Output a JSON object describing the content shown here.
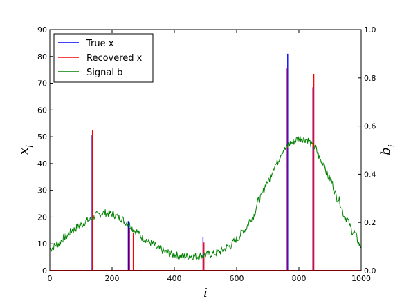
{
  "chart_data": {
    "type": "line",
    "xlabel": "i",
    "ylabel": "x_i",
    "y2label": "b_i",
    "xlim": [
      0,
      1000
    ],
    "ylim": [
      0,
      90
    ],
    "y2lim": [
      0,
      1.0
    ],
    "x_ticks": [
      "0",
      "200",
      "400",
      "600",
      "800",
      "1000"
    ],
    "y_ticks": [
      "0",
      "10",
      "20",
      "30",
      "40",
      "50",
      "60",
      "70",
      "80",
      "90"
    ],
    "y2_ticks": [
      "0.0",
      "0.2",
      "0.4",
      "0.6",
      "0.8",
      "1.0"
    ],
    "grid": false,
    "legend_position": "top-left",
    "series": [
      {
        "name": "True x",
        "axis": "left",
        "style": "spikes",
        "color": "#0000ff",
        "x": [
          133,
          252,
          492,
          764,
          845
        ],
        "values": [
          50.5,
          18.5,
          12.5,
          81,
          68.5
        ]
      },
      {
        "name": "Recovered x",
        "axis": "left",
        "style": "spikes",
        "color": "#ff0000",
        "x": [
          137,
          256,
          268,
          495,
          760,
          848
        ],
        "values": [
          52.5,
          16,
          14,
          10.5,
          75.5,
          73.5
        ]
      },
      {
        "name": "Signal b",
        "axis": "right",
        "style": "line",
        "color": "#008000",
        "x": [
          0,
          25,
          50,
          75,
          100,
          125,
          150,
          175,
          200,
          225,
          250,
          275,
          300,
          325,
          350,
          375,
          400,
          425,
          450,
          475,
          500,
          525,
          550,
          575,
          600,
          625,
          650,
          675,
          700,
          725,
          750,
          775,
          800,
          825,
          850,
          875,
          900,
          925,
          950,
          975,
          1000
        ],
        "values": [
          0.09,
          0.11,
          0.14,
          0.17,
          0.19,
          0.21,
          0.23,
          0.24,
          0.235,
          0.22,
          0.195,
          0.165,
          0.135,
          0.115,
          0.09,
          0.075,
          0.065,
          0.06,
          0.06,
          0.06,
          0.065,
          0.07,
          0.08,
          0.1,
          0.13,
          0.17,
          0.22,
          0.3,
          0.37,
          0.44,
          0.5,
          0.53,
          0.55,
          0.545,
          0.51,
          0.45,
          0.38,
          0.3,
          0.22,
          0.16,
          0.1
        ]
      }
    ]
  }
}
